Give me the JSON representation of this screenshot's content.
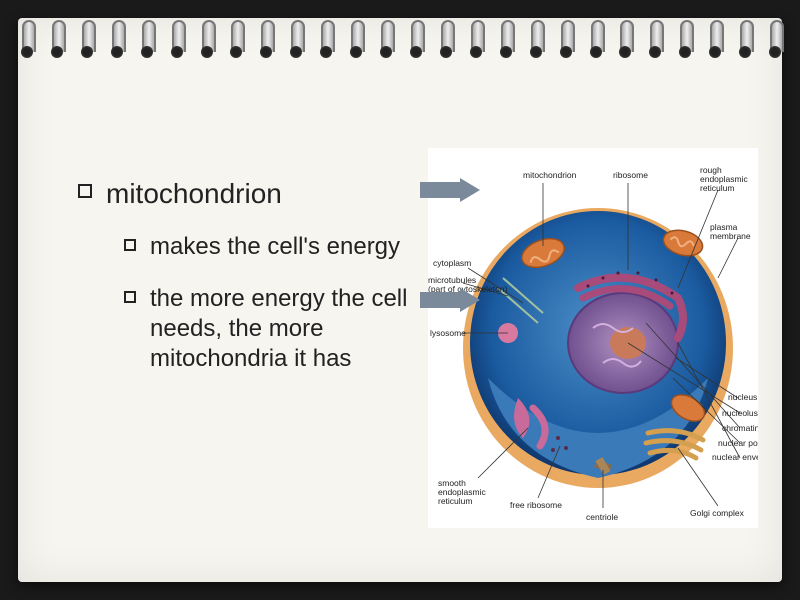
{
  "slide": {
    "title": "mitochondrion",
    "bullets": [
      " makes the cell's energy",
      "the more energy the cell needs, the more mitochondria it has"
    ]
  },
  "diagram": {
    "type": "infographic",
    "background_color": "#ffffff",
    "cell_outer_color": "#1a3a6b",
    "cell_inner_gradient": [
      "#0a3a7a",
      "#1a6bbf"
    ],
    "cytoplasm_color": "#4d8fc9",
    "nucleus_color": "#7b5a9e",
    "nucleolus_color": "#c87a5a",
    "mitochondrion_color": "#d97a3a",
    "er_color": "#a84a7a",
    "membrane_color": "#e8a050",
    "labels": {
      "mitochondrion": "mitochondrion",
      "ribosome": "ribosome",
      "rough_er": "rough endoplasmic reticulum",
      "plasma_membrane": "plasma membrane",
      "cytoplasm": "cytoplasm",
      "microtubules": "microtubules (part of cytoskeleton)",
      "lysosome": "lysosome",
      "smooth_er": "smooth endoplasmic reticulum",
      "free_ribosome": "free ribosome",
      "centriole": "centriole",
      "golgi": "Golgi complex",
      "nucleus": "nucleus",
      "nucleolus": "nucleolus",
      "chromatin": "chromatin",
      "nuclear_pore": "nuclear pore",
      "nuclear_envelope": "nuclear envelope"
    },
    "arrow_color": "#7a8a9a"
  },
  "styling": {
    "page_bg": "#f7f5ef",
    "outer_bg": "#1a1a1a",
    "title_fontsize": 28,
    "body_fontsize": 24,
    "bullet_marker": "hollow-square",
    "ring_count": 26
  }
}
